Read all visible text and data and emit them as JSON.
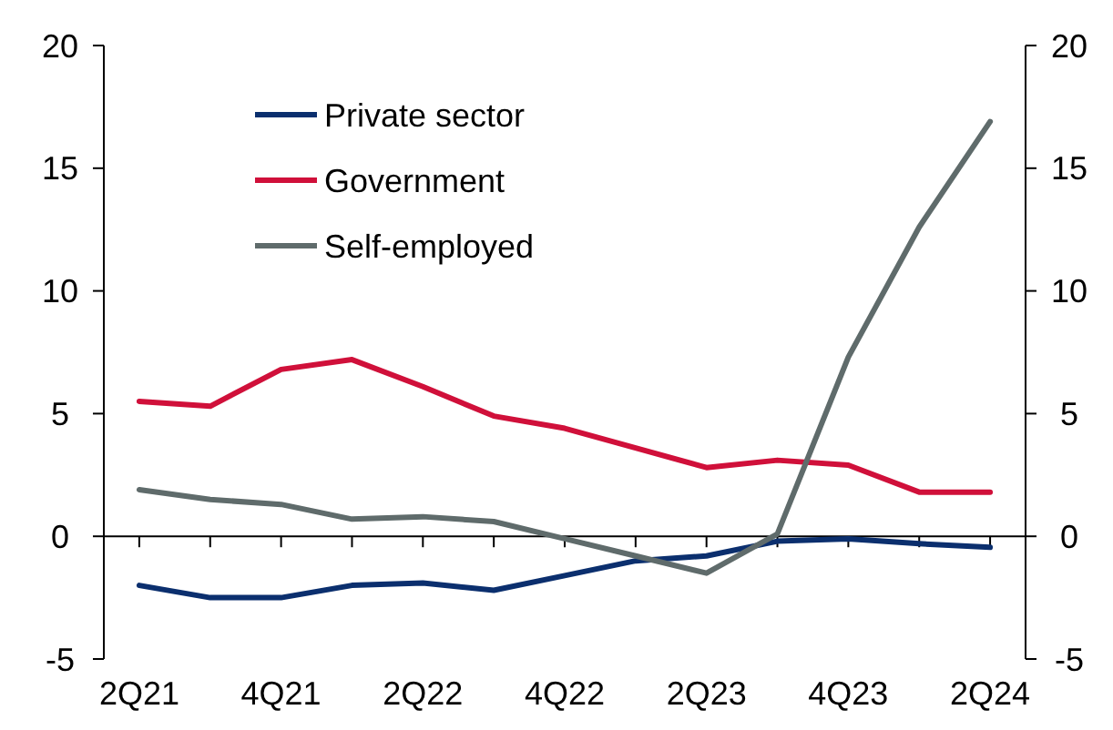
{
  "chart_data": {
    "type": "line",
    "categories": [
      "2Q21",
      null,
      "4Q21",
      null,
      "2Q22",
      null,
      "4Q22",
      null,
      "2Q23",
      null,
      "4Q23",
      null,
      "2Q24"
    ],
    "series": [
      {
        "name": "Private sector",
        "color": "#0b2f6e",
        "values": [
          -2.0,
          -2.5,
          -2.5,
          -2.0,
          -1.9,
          -2.2,
          -1.6,
          -1.0,
          -0.8,
          -0.2,
          -0.1,
          -0.3,
          -0.45
        ]
      },
      {
        "name": "Government",
        "color": "#d0103a",
        "values": [
          5.5,
          5.3,
          6.8,
          7.2,
          6.1,
          4.9,
          4.4,
          3.6,
          2.8,
          3.1,
          2.9,
          1.8,
          1.8
        ]
      },
      {
        "name": "Self-employed",
        "color": "#5f6b6b",
        "values": [
          1.9,
          1.5,
          1.3,
          0.7,
          0.8,
          0.6,
          -0.1,
          -0.8,
          -1.5,
          0.1,
          7.3,
          12.6,
          16.9
        ]
      }
    ],
    "ylim": [
      -5,
      20
    ],
    "yticks": [
      -5,
      0,
      5,
      10,
      15,
      20
    ],
    "y2lim": [
      -5,
      20
    ],
    "y2ticks": [
      -5,
      0,
      5,
      10,
      15,
      20
    ],
    "legend": "top left",
    "line_style": "solid"
  }
}
